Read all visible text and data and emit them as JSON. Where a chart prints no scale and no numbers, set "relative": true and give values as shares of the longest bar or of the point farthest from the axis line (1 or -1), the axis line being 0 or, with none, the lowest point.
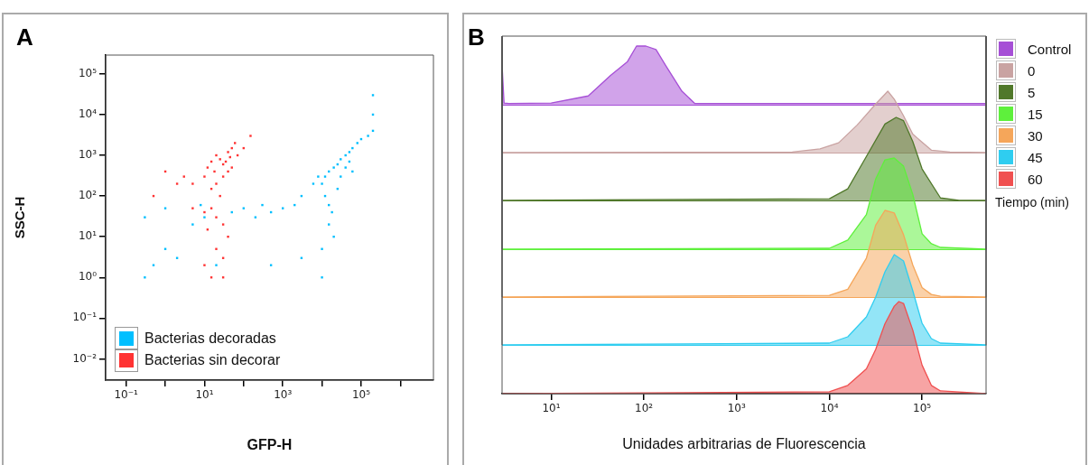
{
  "chart_data": [
    {
      "type": "scatter",
      "title": "A",
      "xlabel": "GFP-H",
      "ylabel": "SSC-H",
      "log": "xy",
      "marker": "square",
      "legend": "bottom left",
      "xlim": [
        0.03,
        7000000
      ],
      "ylim": [
        0.003,
        290000
      ],
      "xticks": [
        {
          "value": 0.1,
          "label": "10⁻¹"
        },
        {
          "value": 1,
          "label": null
        },
        {
          "value": 10,
          "label": "10¹"
        },
        {
          "value": 100,
          "label": null
        },
        {
          "value": 1000,
          "label": "10³"
        },
        {
          "value": 10000,
          "label": null
        },
        {
          "value": 100000,
          "label": "10⁵"
        },
        {
          "value": 1000000,
          "label": null
        }
      ],
      "yticks": [
        {
          "value": 0.01,
          "label": "10⁻²"
        },
        {
          "value": 0.1,
          "label": "10⁻¹"
        },
        {
          "value": 1,
          "label": "10⁰"
        },
        {
          "value": 10,
          "label": "10¹"
        },
        {
          "value": 100,
          "label": "10²"
        },
        {
          "value": 1000,
          "label": "10³"
        },
        {
          "value": 10000,
          "label": "10⁴"
        },
        {
          "value": 100000,
          "label": "10⁵"
        }
      ],
      "series": [
        {
          "name": "Bacterias decoradas",
          "color": "#00bfff",
          "x": [
            10000,
            12000,
            15000,
            20000,
            25000,
            30000,
            40000,
            50000,
            60000,
            80000,
            100000,
            150000,
            200000,
            200000,
            200000,
            12000,
            15000,
            18000,
            15000,
            20000,
            10000,
            25000,
            30000,
            40000,
            50000,
            60000,
            8000,
            6000,
            3000,
            2000,
            1000,
            500,
            300,
            200,
            100,
            50,
            10,
            8,
            5,
            1,
            1,
            0.5,
            0.3,
            2,
            20,
            500,
            3000,
            10000,
            0.3
          ],
          "values": [
            200,
            300,
            400,
            500,
            600,
            800,
            1000,
            1200,
            1500,
            2000,
            2500,
            3000,
            4000,
            10000,
            30000,
            100,
            60,
            40,
            20,
            10,
            5,
            150,
            300,
            500,
            700,
            400,
            300,
            200,
            100,
            60,
            50,
            40,
            60,
            30,
            50,
            40,
            30,
            60,
            20,
            50,
            5,
            2,
            1,
            3,
            2,
            2,
            3,
            1,
            30
          ]
        },
        {
          "name": "Bacterias sin decorar",
          "color": "#ff3333",
          "x": [
            10,
            12,
            15,
            20,
            25,
            30,
            40,
            50,
            60,
            70,
            30,
            20,
            15,
            40,
            50,
            25,
            15,
            20,
            30,
            40,
            10,
            12,
            20,
            30,
            15,
            30,
            10,
            5,
            3,
            2,
            1,
            0.5,
            5,
            150,
            100,
            35,
            45,
            18
          ],
          "values": [
            300,
            500,
            700,
            1000,
            800,
            600,
            1200,
            1500,
            2000,
            1000,
            300,
            200,
            150,
            400,
            500,
            100,
            50,
            30,
            20,
            10,
            40,
            15,
            5,
            3,
            1,
            1,
            2,
            200,
            300,
            200,
            400,
            100,
            50,
            3000,
            1500,
            700,
            900,
            400
          ]
        }
      ]
    },
    {
      "type": "area",
      "title": "B",
      "legend": "right",
      "log": "x",
      "relative": true,
      "marker": "none",
      "tick_labels": false,
      "xlim": [
        2.95,
        490000
      ],
      "series": [
        {
          "name": "Control",
          "color": "#a64fd6",
          "x": [
            2.95,
            3.1,
            3.5,
            10,
            25.1,
            43.7,
            66.1,
            83.2,
            105,
            135,
            170,
            257,
            355,
            480000
          ],
          "values": [
            0.68,
            0.03,
            0.02,
            0.03,
            0.15,
            0.5,
            0.73,
            1,
            1,
            0.94,
            0.68,
            0.23,
            0.02,
            0.02
          ]
        }
      ]
    },
    {
      "type": "area",
      "legend": "right",
      "log": "x",
      "relative": true,
      "marker": "none",
      "tick_labels": false,
      "xlim": [
        2.95,
        490000
      ],
      "series": [
        {
          "name": "0",
          "color": "#c9a3a2",
          "x": [
            2.95,
            3980,
            7940,
            12600,
            20000,
            31600,
            42700,
            50100,
            63100,
            79400,
            126000,
            200000,
            490000
          ],
          "values": [
            0,
            0.01,
            0.06,
            0.16,
            0.45,
            0.79,
            1,
            0.87,
            0.6,
            0.3,
            0.04,
            0.01,
            0
          ]
        }
      ]
    },
    {
      "type": "area",
      "legend": "right",
      "log": "x",
      "relative": true,
      "marker": "none",
      "tick_labels": false,
      "xlim": [
        2.95,
        490000
      ],
      "series": [
        {
          "name": "5",
          "color": "#50782a",
          "x": [
            2.95,
            10000,
            15800,
            25100,
            39800,
            52500,
            63100,
            79400,
            100000,
            158000,
            251000,
            490000
          ],
          "values": [
            0,
            0.02,
            0.14,
            0.53,
            0.92,
            1,
            0.96,
            0.71,
            0.38,
            0.03,
            0,
            0
          ]
        }
      ]
    },
    {
      "type": "area",
      "legend": "right",
      "log": "x",
      "relative": true,
      "marker": "none",
      "tick_labels": false,
      "xlim": [
        2.95,
        490000
      ],
      "series": [
        {
          "name": "15",
          "color": "#5ef03c",
          "x": [
            2.95,
            10000,
            15800,
            25100,
            31600,
            39800,
            50100,
            63100,
            79400,
            100000,
            126000,
            158000,
            490000
          ],
          "values": [
            0,
            0.01,
            0.1,
            0.38,
            0.77,
            0.98,
            1,
            0.91,
            0.6,
            0.17,
            0.06,
            0.02,
            0
          ]
        }
      ]
    },
    {
      "type": "area",
      "legend": "right",
      "log": "x",
      "relative": true,
      "marker": "none",
      "tick_labels": false,
      "xlim": [
        2.95,
        490000
      ],
      "series": [
        {
          "name": "30",
          "color": "#f5a65a",
          "x": [
            2.95,
            10000,
            15800,
            25100,
            31600,
            39800,
            50100,
            63100,
            79400,
            100000,
            126000,
            158000,
            490000
          ],
          "values": [
            0,
            0.02,
            0.09,
            0.45,
            0.83,
            1,
            0.97,
            0.72,
            0.37,
            0.11,
            0.03,
            0.01,
            0
          ]
        }
      ]
    },
    {
      "type": "area",
      "legend": "right",
      "log": "x",
      "relative": true,
      "marker": "none",
      "tick_labels": false,
      "xlim": [
        2.95,
        490000
      ],
      "series": [
        {
          "name": "45",
          "color": "#2fcdf0",
          "x": [
            2.95,
            10000,
            15800,
            25100,
            31600,
            39800,
            50100,
            63100,
            79400,
            100000,
            126000,
            158000,
            490000
          ],
          "values": [
            0,
            0.02,
            0.09,
            0.31,
            0.53,
            0.81,
            1,
            0.93,
            0.6,
            0.24,
            0.07,
            0.02,
            0
          ]
        }
      ]
    },
    {
      "type": "area",
      "xlabel": "Unidades arbitrarias de Fluorescencia",
      "legend": "right",
      "legend_title": "Tiempo (min)",
      "log": "x",
      "relative": true,
      "marker": "none",
      "tick_labels": "x",
      "xlim": [
        2.95,
        490000
      ],
      "xticks": [
        {
          "value": 10,
          "label": "10¹"
        },
        {
          "value": 100,
          "label": "10²"
        },
        {
          "value": 1000,
          "label": "10³"
        },
        {
          "value": 10000,
          "label": "10⁴"
        },
        {
          "value": 100000,
          "label": "10⁵"
        }
      ],
      "series": [
        {
          "name": "60",
          "color": "#f05050",
          "x": [
            2.95,
            10000,
            15800,
            25100,
            31600,
            39800,
            50100,
            56200,
            63100,
            79400,
            100000,
            126000,
            158000,
            490000
          ],
          "values": [
            0,
            0.02,
            0.09,
            0.27,
            0.48,
            0.76,
            0.95,
            1,
            0.98,
            0.69,
            0.31,
            0.09,
            0.03,
            0
          ]
        }
      ]
    }
  ]
}
